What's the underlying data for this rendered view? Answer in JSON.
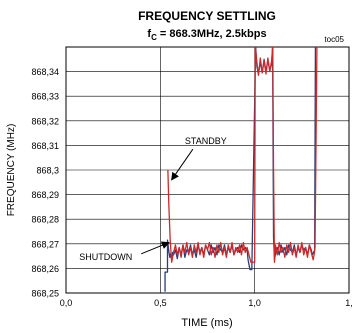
{
  "chart_data": {
    "type": "line",
    "title": "FREQUENCY SETTLING",
    "subtitle_prefix": "f",
    "subtitle_sub": "C",
    "subtitle_rest": " = 868.3MHz, 2.5kbps",
    "tag": "toc05",
    "xlabel": "TIME (ms)",
    "ylabel": "FREQUENCY (MHz)",
    "xlim": [
      0,
      1.5
    ],
    "ylim": [
      868.25,
      868.35
    ],
    "x_ticks": [
      0,
      0.5,
      1.0,
      1.5
    ],
    "x_tick_labels": [
      "0,0",
      "0,5",
      "1,0",
      "1,"
    ],
    "y_ticks": [
      868.25,
      868.26,
      868.27,
      868.28,
      868.29,
      868.3,
      868.31,
      868.32,
      868.33,
      868.34
    ],
    "y_tick_labels": [
      "868,25",
      "868,26",
      "868,27",
      "868,28",
      "868,29",
      "868,3",
      "868,31",
      "868,32",
      "868,33",
      "868,34"
    ],
    "grid": true,
    "annotations": [
      {
        "text": "STANDBY",
        "x": 0.63,
        "y": 868.3105,
        "arrow_to": [
          0.56,
          868.296
        ]
      },
      {
        "text": "SHUTDOWN",
        "x": 0.07,
        "y": 868.2635,
        "arrow_to": [
          0.545,
          868.2705
        ]
      }
    ],
    "series": [
      {
        "color": "#2a3d7a",
        "x": [
          0.525,
          0.525,
          0.538,
          0.538,
          0.545,
          0.55,
          0.555,
          0.56,
          0.565,
          0.57,
          0.58,
          0.59,
          0.6,
          0.61,
          0.62,
          0.63,
          0.64,
          0.65,
          0.66,
          0.67,
          0.68,
          0.69,
          0.7,
          0.71,
          0.72,
          0.73,
          0.74,
          0.75,
          0.76,
          0.77,
          0.78,
          0.79,
          0.8,
          0.81,
          0.82,
          0.83,
          0.84,
          0.85,
          0.86,
          0.87,
          0.88,
          0.89,
          0.9,
          0.91,
          0.92,
          0.93,
          0.94,
          0.95,
          0.96,
          0.965,
          0.975,
          0.985,
          1.005,
          1.012,
          1.02,
          1.03,
          1.04,
          1.05,
          1.06,
          1.07,
          1.08,
          1.09,
          1.095,
          1.1,
          1.105,
          1.112,
          1.12,
          1.13,
          1.14,
          1.15,
          1.16,
          1.17,
          1.18,
          1.19,
          1.2,
          1.21,
          1.22,
          1.23,
          1.24,
          1.25,
          1.26,
          1.27,
          1.28,
          1.29,
          1.3,
          1.305,
          1.312,
          1.318,
          1.322,
          1.328
        ],
        "y": [
          868.2505,
          868.2585,
          868.2585,
          868.2715,
          868.267,
          868.2645,
          868.266,
          868.2635,
          868.2665,
          868.2655,
          868.2675,
          868.264,
          868.2685,
          868.2655,
          868.2695,
          868.2645,
          868.2675,
          868.2665,
          868.2695,
          868.2655,
          868.2675,
          868.2645,
          868.2695,
          868.2665,
          868.2685,
          868.2655,
          868.2695,
          868.2675,
          868.2655,
          868.2695,
          868.2665,
          868.2685,
          868.2655,
          868.2695,
          868.2675,
          868.2665,
          868.2695,
          868.2655,
          868.2685,
          868.2665,
          868.2695,
          868.2655,
          868.2675,
          868.2685,
          868.2665,
          868.2695,
          868.2675,
          868.2685,
          868.2675,
          868.2635,
          868.2595,
          868.2595,
          868.3505,
          868.342,
          868.339,
          868.344,
          868.3395,
          868.345,
          868.34,
          868.3445,
          868.3405,
          868.343,
          868.3505,
          868.2725,
          868.2635,
          868.2665,
          868.2685,
          868.2655,
          868.2695,
          868.2665,
          868.2685,
          868.2655,
          868.2695,
          868.2675,
          868.2665,
          868.2695,
          868.2655,
          868.2685,
          868.2665,
          868.2695,
          868.2675,
          868.2685,
          868.2655,
          868.2695,
          868.2675,
          868.2655,
          868.2665,
          868.2675,
          868.3505,
          868.3505
        ]
      },
      {
        "color": "#cc2a2a",
        "x": [
          0.54,
          0.545,
          0.552,
          0.56,
          0.57,
          0.58,
          0.59,
          0.6,
          0.61,
          0.62,
          0.63,
          0.64,
          0.65,
          0.66,
          0.67,
          0.68,
          0.69,
          0.7,
          0.71,
          0.72,
          0.73,
          0.74,
          0.75,
          0.76,
          0.77,
          0.78,
          0.79,
          0.8,
          0.81,
          0.82,
          0.83,
          0.84,
          0.85,
          0.86,
          0.87,
          0.88,
          0.89,
          0.9,
          0.91,
          0.92,
          0.93,
          0.94,
          0.95,
          0.96,
          0.97,
          0.98,
          0.99,
          1.0,
          1.003,
          1.01,
          1.02,
          1.03,
          1.04,
          1.05,
          1.06,
          1.07,
          1.08,
          1.09,
          1.096,
          1.1,
          1.105,
          1.11,
          1.12,
          1.13,
          1.14,
          1.15,
          1.16,
          1.17,
          1.18,
          1.19,
          1.2,
          1.21,
          1.22,
          1.23,
          1.24,
          1.25,
          1.26,
          1.27,
          1.28,
          1.29,
          1.3,
          1.31,
          1.315,
          1.32,
          1.33
        ],
        "y": [
          868.3,
          868.286,
          868.272,
          868.2625,
          868.2665,
          868.2695,
          868.2655,
          868.2685,
          868.2645,
          868.2695,
          868.2665,
          868.2705,
          868.2655,
          868.2685,
          868.2645,
          868.2695,
          868.2665,
          868.2705,
          868.2655,
          868.2685,
          868.2645,
          868.2695,
          868.2675,
          868.2705,
          868.2655,
          868.2685,
          868.2645,
          868.2695,
          868.2665,
          868.2705,
          868.2655,
          868.2685,
          868.2645,
          868.2695,
          868.2665,
          868.2705,
          868.2655,
          868.2685,
          868.2665,
          868.2695,
          868.2655,
          868.2705,
          868.2665,
          868.2685,
          868.2655,
          868.2625,
          868.2625,
          868.2625,
          868.3505,
          868.345,
          868.3385,
          868.3455,
          868.3395,
          868.3445,
          868.339,
          868.3455,
          868.34,
          868.3445,
          868.3505,
          868.3,
          868.2625,
          868.2695,
          868.2655,
          868.2705,
          868.2665,
          868.2685,
          868.2645,
          868.2695,
          868.2665,
          868.2705,
          868.2655,
          868.2685,
          868.2645,
          868.2695,
          868.2665,
          868.2705,
          868.2655,
          868.2685,
          868.2645,
          868.2695,
          868.2665,
          868.2635,
          868.2655,
          868.2685,
          868.3505
        ]
      }
    ]
  }
}
